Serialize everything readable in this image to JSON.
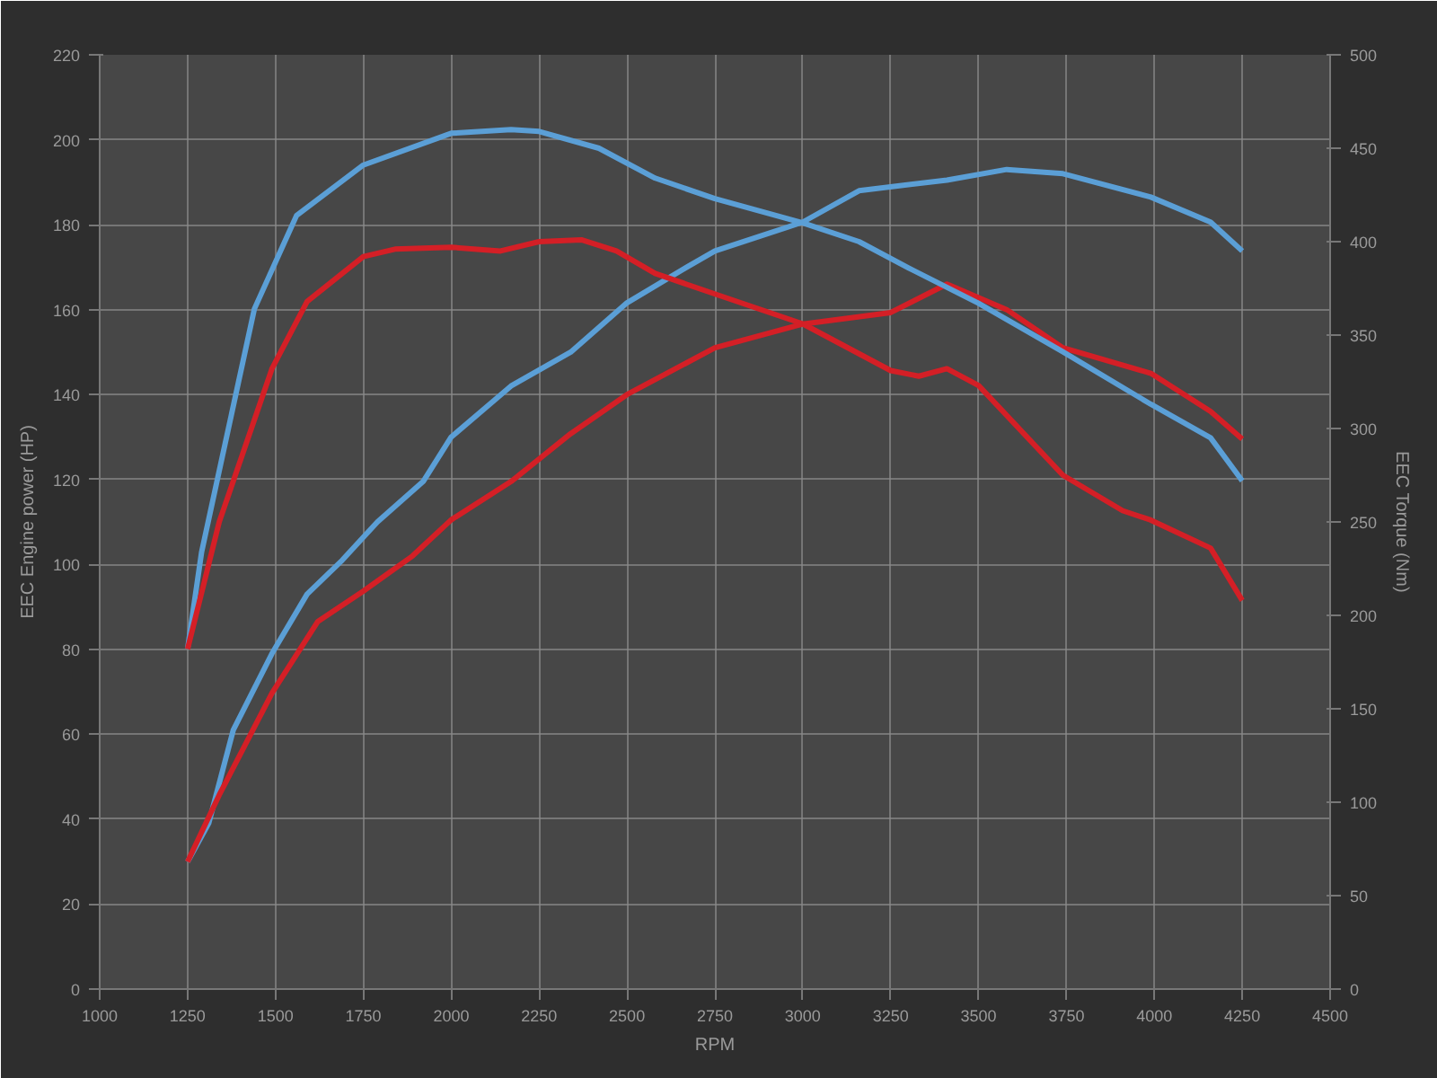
{
  "chart_data": {
    "type": "line",
    "xlabel": "RPM",
    "ylabel": "EEC Engine power (HP)",
    "y2label": "EEC Torque (Nm)",
    "xlim": [
      1000,
      4500
    ],
    "xticks": [
      1000,
      1250,
      1500,
      1750,
      2000,
      2250,
      2500,
      2750,
      3000,
      3250,
      3500,
      3750,
      4000,
      4250,
      4500
    ],
    "ylim": [
      0,
      220
    ],
    "yticks": [
      0,
      20,
      40,
      60,
      80,
      100,
      120,
      140,
      160,
      180,
      200,
      220
    ],
    "y2lim": [
      0,
      500
    ],
    "y2ticks": [
      0,
      50,
      100,
      150,
      200,
      250,
      300,
      350,
      400,
      450,
      500
    ],
    "grid": true,
    "marker": "none",
    "line_style": "solid",
    "series": [
      {
        "color": "#5b9fd6",
        "axis": "y",
        "x": [
          1250,
          1310,
          1380,
          1490,
          1590,
          1690,
          1790,
          1920,
          2000,
          2170,
          2340,
          2500,
          2670,
          2750,
          3000,
          3160,
          3410,
          3580,
          3740,
          3990,
          4160,
          4250
        ],
        "values": [
          30,
          39,
          61,
          79,
          93,
          101,
          110,
          119.5,
          130,
          142,
          150,
          161.6,
          170,
          173.8,
          180.6,
          188,
          190.5,
          193,
          192,
          186.5,
          180.6,
          173.8
        ]
      },
      {
        "color": "#d41f26",
        "axis": "y",
        "x": [
          1250,
          1340,
          1490,
          1620,
          1750,
          1890,
          2000,
          2170,
          2340,
          2500,
          2750,
          3000,
          3250,
          3410,
          3580,
          3740,
          3990,
          4160,
          4250
        ],
        "values": [
          30,
          45.7,
          69.7,
          86.5,
          93.7,
          102,
          110.5,
          119.5,
          130.8,
          140,
          151,
          156.6,
          159.3,
          166,
          160,
          151,
          145,
          136,
          129.5
        ]
      },
      {
        "color": "#5b9fd6",
        "axis": "y2",
        "x": [
          1250,
          1290,
          1440,
          1560,
          1750,
          2000,
          2170,
          2250,
          2420,
          2580,
          2750,
          3000,
          3160,
          3300,
          3500,
          3740,
          3990,
          4160,
          4250
        ],
        "values": [
          182,
          234,
          364,
          414,
          441,
          458,
          460,
          459,
          450,
          434,
          423,
          410,
          400,
          386,
          367,
          341,
          313,
          295,
          272
        ]
      },
      {
        "color": "#d41f26",
        "axis": "y2",
        "x": [
          1250,
          1340,
          1490,
          1590,
          1750,
          1840,
          2000,
          2140,
          2250,
          2370,
          2470,
          2580,
          2750,
          3000,
          3250,
          3330,
          3410,
          3500,
          3740,
          3910,
          3990,
          4160,
          4250
        ],
        "values": [
          182,
          250,
          332,
          368,
          392,
          396,
          397,
          395,
          400,
          401,
          395,
          383,
          372,
          356,
          331,
          328,
          332,
          323,
          275,
          256,
          251,
          236,
          208
        ]
      }
    ]
  }
}
